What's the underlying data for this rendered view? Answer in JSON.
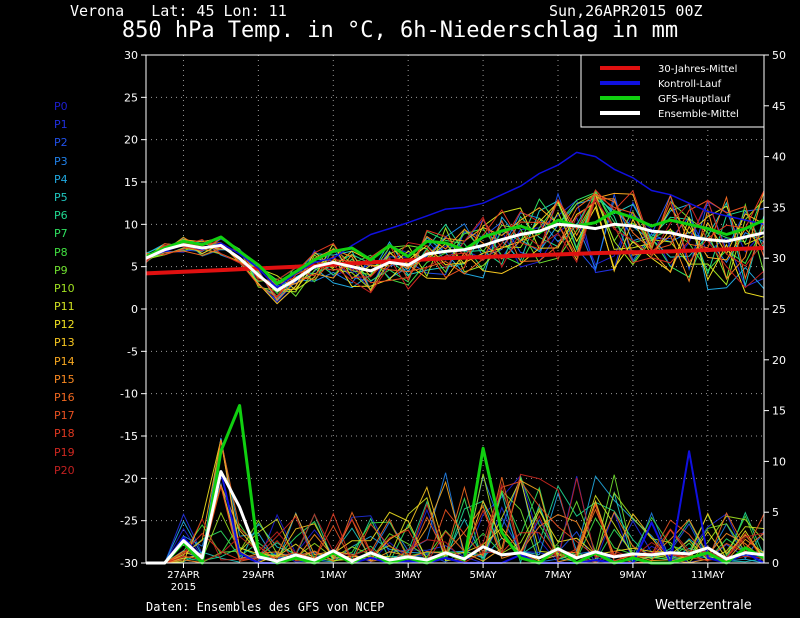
{
  "header": {
    "location": "Verona   Lat: 45 Lon: 11",
    "run": "Sun,26APR2015 00Z",
    "title": "850 hPa Temp. in °C, 6h-Niederschlag in mm"
  },
  "footer": {
    "source": "Daten: Ensembles des GFS von NCEP",
    "brand": "Wetterzentrale"
  },
  "members": [
    {
      "label": "P0",
      "color": "#1e1ed0"
    },
    {
      "label": "P1",
      "color": "#2030e0"
    },
    {
      "label": "P2",
      "color": "#2050e8"
    },
    {
      "label": "P3",
      "color": "#2080e8"
    },
    {
      "label": "P4",
      "color": "#20a8e0"
    },
    {
      "label": "P5",
      "color": "#20c8c0"
    },
    {
      "label": "P6",
      "color": "#20d890"
    },
    {
      "label": "P7",
      "color": "#30e060"
    },
    {
      "label": "P8",
      "color": "#40e040"
    },
    {
      "label": "P9",
      "color": "#70e030"
    },
    {
      "label": "P10",
      "color": "#a0e020"
    },
    {
      "label": "P11",
      "color": "#d0e020"
    },
    {
      "label": "P12",
      "color": "#f0e020"
    },
    {
      "label": "P13",
      "color": "#f8c820"
    },
    {
      "label": "P14",
      "color": "#f8a820"
    },
    {
      "label": "P15",
      "color": "#f88820"
    },
    {
      "label": "P16",
      "color": "#f06820"
    },
    {
      "label": "P17",
      "color": "#e85020"
    },
    {
      "label": "P18",
      "color": "#e03820"
    },
    {
      "label": "P19",
      "color": "#d02820"
    },
    {
      "label": "P20",
      "color": "#c02020"
    }
  ],
  "chart_data": {
    "type": "line",
    "title": "850 hPa Temp. in °C, 6h-Niederschlag in mm",
    "xlabel": "",
    "ylabel": "",
    "y2label": "",
    "ylim": [
      -30,
      30
    ],
    "y2lim": [
      0,
      50
    ],
    "yticks": [
      -30,
      -25,
      -20,
      -15,
      -10,
      -5,
      0,
      5,
      10,
      15,
      20,
      25,
      30
    ],
    "y2ticks": [
      0,
      5,
      10,
      15,
      20,
      25,
      30,
      35,
      40,
      45,
      50
    ],
    "xlim": [
      0,
      16.5
    ],
    "xticks": [
      {
        "x": 1,
        "label": "27APR",
        "sub": "2015"
      },
      {
        "x": 3,
        "label": "29APR",
        "sub": ""
      },
      {
        "x": 5,
        "label": "1MAY",
        "sub": ""
      },
      {
        "x": 7,
        "label": "3MAY",
        "sub": ""
      },
      {
        "x": 9,
        "label": "5MAY",
        "sub": ""
      },
      {
        "x": 11,
        "label": "7MAY",
        "sub": ""
      },
      {
        "x": 13,
        "label": "9MAY",
        "sub": ""
      },
      {
        "x": 15,
        "label": "11MAY",
        "sub": ""
      }
    ],
    "grid": true,
    "legend_position": "top-right",
    "legend": [
      {
        "name": "30-Jahres-Mittel",
        "color": "#e01010"
      },
      {
        "name": "Kontroll-Lauf",
        "color": "#1010e0"
      },
      {
        "name": "GFS-Hauptlauf",
        "color": "#10d010"
      },
      {
        "name": "Ensemble-Mittel",
        "color": "#ffffff"
      }
    ],
    "series": [
      {
        "name": "30-Jahres-Mittel",
        "color": "#e01010",
        "width": 4,
        "axis": "left",
        "x": [
          0,
          2,
          4,
          6,
          8,
          10,
          12,
          14,
          16.5
        ],
        "values": [
          4.2,
          4.6,
          5.0,
          5.5,
          6.0,
          6.3,
          6.6,
          6.8,
          7.2
        ]
      },
      {
        "name": "Kontroll-Lauf",
        "color": "#1010e0",
        "width": 1.5,
        "axis": "left",
        "x": [
          0,
          0.5,
          1,
          1.5,
          2,
          2.5,
          3,
          3.5,
          4,
          4.5,
          5,
          5.5,
          6,
          6.5,
          7,
          7.5,
          8,
          8.5,
          9,
          9.5,
          10,
          10.5,
          11,
          11.5,
          12,
          12.5,
          13,
          13.5,
          14,
          14.5,
          15,
          15.5,
          16,
          16.5
        ],
        "values": [
          6.0,
          6.8,
          7.6,
          7.0,
          7.8,
          6.5,
          4.8,
          2.5,
          4.2,
          5.5,
          6.0,
          7.5,
          8.8,
          9.5,
          10.2,
          11.0,
          11.8,
          12.0,
          12.5,
          13.5,
          14.5,
          16.0,
          17.0,
          18.5,
          18.0,
          16.5,
          15.5,
          14.0,
          13.5,
          12.5,
          11.5,
          11.0,
          10.5,
          10.0
        ]
      },
      {
        "name": "GFS-Hauptlauf",
        "color": "#10d010",
        "width": 3,
        "axis": "left",
        "x": [
          0,
          0.5,
          1,
          1.5,
          2,
          2.5,
          3,
          3.5,
          4,
          4.5,
          5,
          5.5,
          6,
          6.5,
          7,
          7.5,
          8,
          8.5,
          9,
          9.5,
          10,
          10.5,
          11,
          11.5,
          12,
          12.5,
          13,
          13.5,
          14,
          14.5,
          15,
          15.5,
          16,
          16.5
        ],
        "values": [
          6.2,
          7.2,
          8.0,
          7.6,
          8.5,
          6.8,
          5.2,
          3.0,
          4.4,
          5.8,
          6.8,
          7.2,
          5.8,
          7.5,
          6.2,
          8.0,
          7.8,
          7.0,
          8.5,
          9.2,
          9.8,
          9.0,
          10.5,
          9.8,
          10.2,
          11.5,
          10.8,
          9.8,
          10.5,
          10.0,
          9.5,
          8.8,
          9.5,
          10.5
        ]
      },
      {
        "name": "Ensemble-Mittel",
        "color": "#ffffff",
        "width": 3,
        "axis": "left",
        "x": [
          0,
          0.5,
          1,
          1.5,
          2,
          2.5,
          3,
          3.5,
          4,
          4.5,
          5,
          5.5,
          6,
          6.5,
          7,
          7.5,
          8,
          8.5,
          9,
          9.5,
          10,
          10.5,
          11,
          11.5,
          12,
          12.5,
          13,
          13.5,
          14,
          14.5,
          15,
          15.5,
          16,
          16.5
        ],
        "values": [
          6.0,
          7.0,
          7.6,
          7.2,
          7.5,
          6.0,
          4.0,
          2.2,
          3.5,
          5.0,
          5.5,
          5.0,
          4.5,
          5.5,
          5.2,
          6.5,
          6.8,
          7.0,
          7.5,
          8.2,
          8.8,
          9.2,
          10.0,
          9.8,
          9.5,
          10.0,
          9.8,
          9.2,
          9.0,
          8.5,
          8.2,
          8.0,
          8.5,
          9.0
        ]
      },
      {
        "name": "Kontroll-Lauf",
        "color": "#1010e0",
        "width": 2,
        "axis": "right",
        "x": [
          0,
          0.5,
          1,
          1.5,
          2,
          2.5,
          3,
          3.5,
          4,
          4.5,
          5,
          5.5,
          6,
          6.5,
          7,
          7.5,
          8,
          8.5,
          9,
          9.5,
          10,
          10.5,
          11,
          11.5,
          12,
          12.5,
          13,
          13.5,
          14,
          14.5,
          15,
          15.5,
          16,
          16.5
        ],
        "values": [
          0,
          0,
          2.5,
          0.5,
          9,
          1,
          0,
          0,
          0.5,
          0,
          1,
          0,
          0.5,
          0,
          0.2,
          0,
          0.5,
          0,
          0,
          0,
          0.8,
          0,
          0,
          0,
          0.3,
          0,
          0,
          4,
          0,
          11,
          0.5,
          0,
          1,
          0
        ]
      },
      {
        "name": "GFS-Hauptlauf",
        "color": "#10d010",
        "width": 3,
        "axis": "right",
        "x": [
          0,
          0.5,
          1,
          1.5,
          2,
          2.5,
          3,
          3.5,
          4,
          4.5,
          5,
          5.5,
          6,
          6.5,
          7,
          7.5,
          8,
          8.5,
          9,
          9.5,
          10,
          10.5,
          11,
          11.5,
          12,
          12.5,
          13,
          13.5,
          14,
          14.5,
          15,
          15.5,
          16,
          16.5
        ],
        "values": [
          0,
          0,
          2.0,
          0,
          11,
          15.5,
          1,
          0,
          0.5,
          0,
          1,
          0,
          1,
          0,
          0.5,
          0,
          1,
          0.3,
          11.3,
          3,
          0.5,
          0,
          1.5,
          0,
          1,
          0,
          0.5,
          0,
          0,
          0.5,
          1,
          0,
          1.5,
          0.5
        ]
      },
      {
        "name": "Ensemble-Mittel",
        "color": "#ffffff",
        "width": 3,
        "axis": "right",
        "x": [
          0,
          0.5,
          1,
          1.5,
          2,
          2.5,
          3,
          3.5,
          4,
          4.5,
          5,
          5.5,
          6,
          6.5,
          7,
          7.5,
          8,
          8.5,
          9,
          9.5,
          10,
          10.5,
          11,
          11.5,
          12,
          12.5,
          13,
          13.5,
          14,
          14.5,
          15,
          15.5,
          16,
          16.5
        ],
        "values": [
          0,
          0,
          2.2,
          0.5,
          9,
          5.5,
          0.6,
          0.2,
          0.8,
          0.3,
          1.2,
          0.2,
          1,
          0.3,
          0.6,
          0.3,
          1,
          0.4,
          1.6,
          0.8,
          1.0,
          0.5,
          1.4,
          0.5,
          1.1,
          0.6,
          0.9,
          0.8,
          1.0,
          0.9,
          1.5,
          0.4,
          1.0,
          0.8
        ]
      }
    ]
  }
}
